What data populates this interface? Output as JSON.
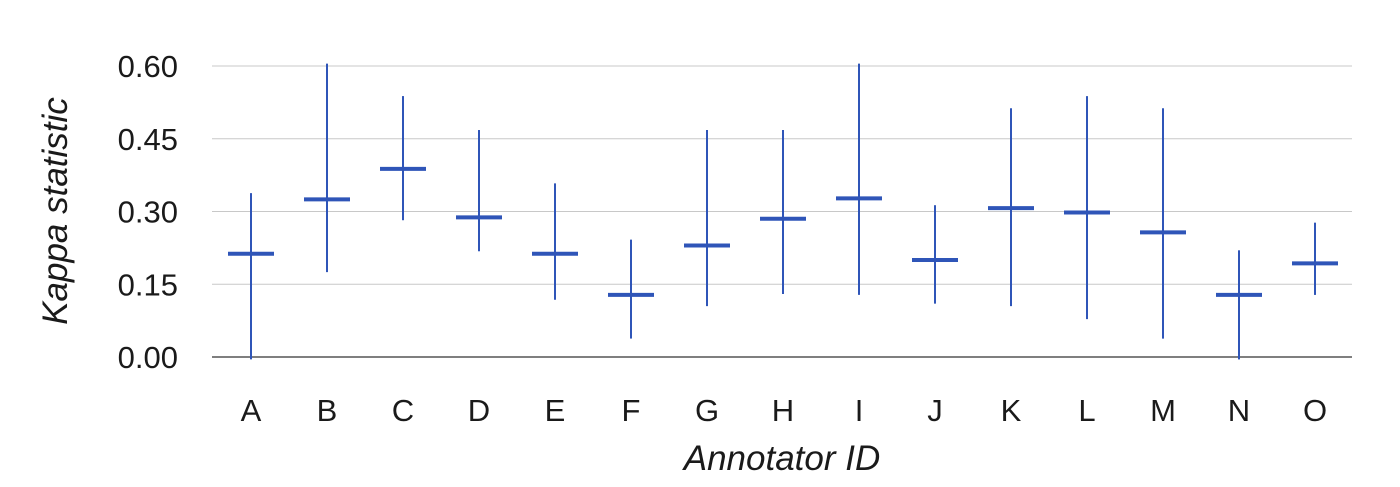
{
  "chart_data": {
    "type": "errorbar",
    "title": "",
    "xlabel": "Annotator ID",
    "ylabel": "Kappa statistic",
    "ylim": [
      0,
      0.6
    ],
    "yticks": [
      "0.00",
      "0.15",
      "0.30",
      "0.45",
      "0.60"
    ],
    "grid": true,
    "color": "#2f55b8",
    "categories": [
      "A",
      "B",
      "C",
      "D",
      "E",
      "F",
      "G",
      "H",
      "I",
      "J",
      "K",
      "L",
      "M",
      "N",
      "O"
    ],
    "values": [
      0.213,
      0.325,
      0.388,
      0.288,
      0.213,
      0.128,
      0.23,
      0.285,
      0.327,
      0.2,
      0.307,
      0.298,
      0.257,
      0.128,
      0.193
    ],
    "lower": [
      -0.005,
      0.175,
      0.282,
      0.218,
      0.118,
      0.038,
      0.105,
      0.13,
      0.128,
      0.11,
      0.105,
      0.078,
      0.038,
      -0.005,
      0.128
    ],
    "upper": [
      0.338,
      0.605,
      0.538,
      0.468,
      0.358,
      0.242,
      0.468,
      0.468,
      0.605,
      0.313,
      0.513,
      0.538,
      0.513,
      0.22,
      0.277
    ]
  }
}
